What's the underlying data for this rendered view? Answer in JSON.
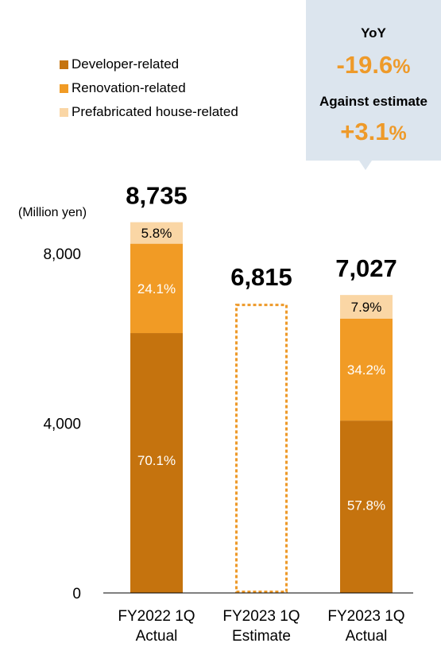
{
  "legend": {
    "items": [
      {
        "label": "Developer-related",
        "color": "#c5730e"
      },
      {
        "label": "Renovation-related",
        "color": "#f19b25"
      },
      {
        "label": "Prefabricated house-related",
        "color": "#fad6a5"
      }
    ]
  },
  "callout": {
    "yoy_label": "YoY",
    "yoy_value": "-19.6",
    "yoy_unit": "%",
    "estimate_label": "Against estimate",
    "estimate_value": "+3.1",
    "estimate_unit": "%",
    "background": "#dce5ee",
    "accent": "#ee9a2a"
  },
  "chart_data": {
    "type": "bar",
    "stacked": true,
    "ylabel": "(Million yen)",
    "ylim": [
      0,
      10300
    ],
    "yticks": [
      0,
      4000,
      8000
    ],
    "ytick_labels": [
      "0",
      "4,000",
      "8,000"
    ],
    "categories": [
      [
        "FY2022 1Q",
        "Actual"
      ],
      [
        "FY2023 1Q",
        "Estimate"
      ],
      [
        "FY2023 1Q",
        "Actual"
      ]
    ],
    "totals": [
      8735,
      6815,
      7027
    ],
    "total_labels": [
      "8,735",
      "6,815",
      "7,027"
    ],
    "estimate_index": 1,
    "estimate_color": "#ee9a2a",
    "series": [
      {
        "name": "Developer-related",
        "color": "#c5730e",
        "text_color": "#ffffff",
        "shares": [
          70.1,
          null,
          57.8
        ],
        "labels": [
          "70.1%",
          null,
          "57.8%"
        ]
      },
      {
        "name": "Renovation-related",
        "color": "#f19b25",
        "text_color": "#ffffff",
        "shares": [
          24.1,
          null,
          34.2
        ],
        "labels": [
          "24.1%",
          null,
          "34.2%"
        ]
      },
      {
        "name": "Prefabricated house-related",
        "color": "#fad6a5",
        "text_color": "#000000",
        "shares": [
          5.8,
          null,
          7.9
        ],
        "labels": [
          "5.8%",
          null,
          "7.9%"
        ]
      }
    ]
  }
}
